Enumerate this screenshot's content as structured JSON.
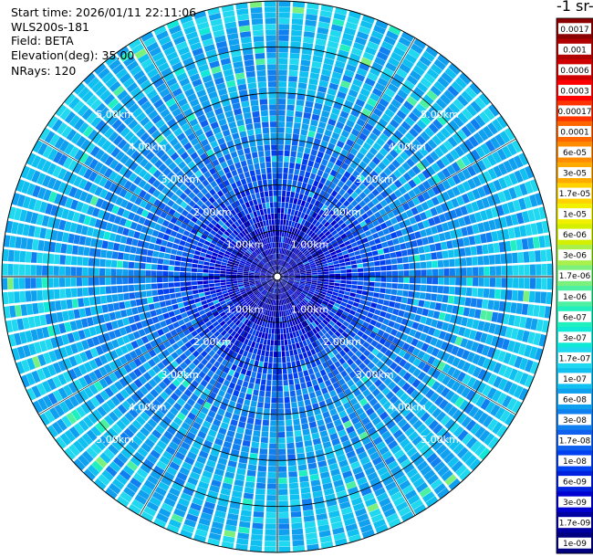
{
  "header": {
    "start_time": "Start time: 2026/01/11 22:11:06",
    "instrument": "WLS200s-181",
    "field": "Field: BETA",
    "elevation": "Elevation(deg): 35.00",
    "nrays": "NRays: 120"
  },
  "colorbar": {
    "title": "-1 sr-",
    "levels": [
      "0.0017",
      "0.001",
      "0.0006",
      "0.0003",
      "0.00017",
      "0.0001",
      "6e-05",
      "3e-05",
      "1.7e-05",
      "1e-05",
      "6e-06",
      "3e-06",
      "1.7e-06",
      "1e-06",
      "6e-07",
      "3e-07",
      "1.7e-07",
      "1e-07",
      "6e-08",
      "3e-08",
      "1.7e-08",
      "1e-08",
      "6e-09",
      "3e-09",
      "1.7e-09",
      "1e-09"
    ],
    "colors": [
      "#8b0000",
      "#b00000",
      "#d00000",
      "#ff0000",
      "#ff3300",
      "#ff6600",
      "#ff8c00",
      "#ffaa00",
      "#ffd200",
      "#f0f000",
      "#d4f000",
      "#aaf04a",
      "#7cf07c",
      "#4cf0a0",
      "#20f0c0",
      "#10e8d8",
      "#20d8f0",
      "#10c0f0",
      "#10a0f0",
      "#1080f0",
      "#1060f0",
      "#0040f0",
      "#0020e0",
      "#0000d0",
      "#0000a0",
      "#000080"
    ]
  },
  "chart_data": {
    "type": "heatmap",
    "projection": "polar",
    "field": "BETA",
    "elevation_deg": 35.0,
    "n_rays": 120,
    "range_km_max": 6.0,
    "range_rings_km": [
      1,
      2,
      3,
      4,
      5
    ],
    "range_labels": [
      "1.00km",
      "2.00km",
      "3.00km",
      "4.00km",
      "5.00km"
    ],
    "color_scale": "log",
    "value_range": [
      1e-09,
      0.0017
    ],
    "typical_value_by_range_km": [
      [
        0,
        2e-09
      ],
      [
        1,
        4e-09
      ],
      [
        2,
        1.5e-08
      ],
      [
        3,
        4e-08
      ],
      [
        4,
        6e-08
      ],
      [
        5,
        8e-08
      ],
      [
        6,
        1.2e-07
      ]
    ]
  }
}
